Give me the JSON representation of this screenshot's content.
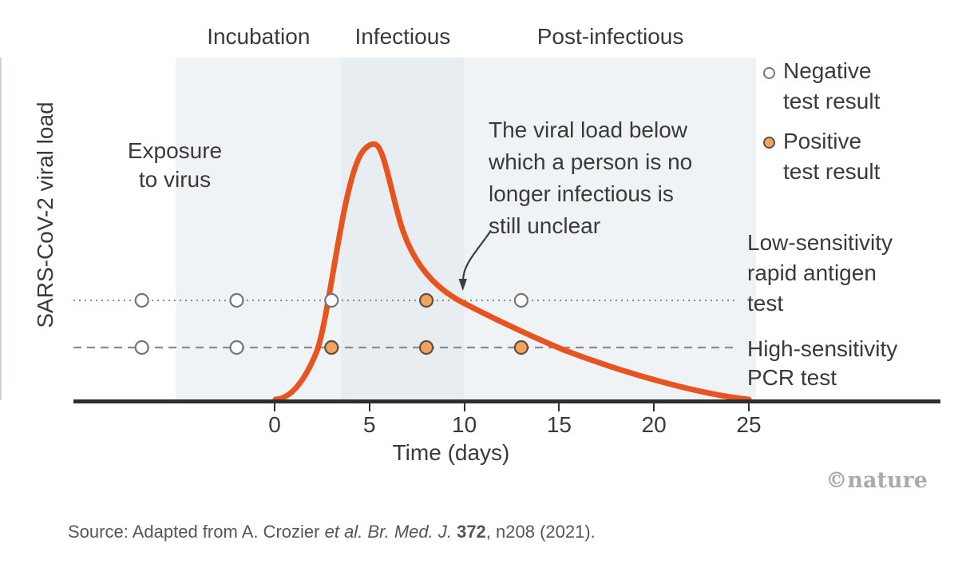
{
  "figure": {
    "y_axis_label": "SARS-CoV-2 viral load",
    "x_axis_label": "Time (days)",
    "exposure_label": "Exposure\nto virus",
    "annotation": "The viral load below\nwhich a person is no\nlonger infectious is\nstill unclear",
    "legend": {
      "negative": "Negative\ntest result",
      "positive": "Positive\ntest result"
    },
    "line_labels": {
      "antigen": "Low-sensitivity\nrapid antigen\ntest",
      "pcr": "High-sensitivity\nPCR test"
    },
    "watermark": "©nature",
    "source": {
      "prefix": "Source: Adapted from A. Crozier ",
      "italic": "et al. Br. Med. J. ",
      "bold": "372",
      "suffix": ", n208 (2021)."
    },
    "colors": {
      "curve": "#E7541F",
      "positive_fill": "#F2A45F",
      "positive_stroke": "#5C5142",
      "negative_stroke": "#757575",
      "band_light": "#F0F3F6",
      "band_dark": "#E8EDF1",
      "axis": "#2F2F2F",
      "muted_line": "#8C8C8C",
      "watermark": "#ABABAB",
      "source_text": "#565656",
      "exposure_line": "#C8D3DB"
    }
  },
  "chart_data": {
    "type": "line",
    "title": "",
    "xlabel": "Time (days)",
    "ylabel": "SARS-CoV-2 viral load",
    "x_ticks": [
      0,
      5,
      10,
      15,
      20,
      25
    ],
    "x_range": [
      -10.6,
      25.4
    ],
    "grid": false,
    "legend_position": "top-right",
    "phases": [
      {
        "label": "Incubation",
        "start_day": -5.2,
        "end_day": 3.5,
        "shade": "light"
      },
      {
        "label": "Infectious",
        "start_day": 3.5,
        "end_day": 10,
        "shade": "dark"
      },
      {
        "label": "Post-infectious",
        "start_day": 10,
        "end_day": 25.4,
        "shade": "light"
      }
    ],
    "exposure_day": -5.2,
    "viral_load_curve": {
      "units": "relative viral load (0-1)",
      "points": [
        [
          0,
          0
        ],
        [
          2.2,
          0.18
        ],
        [
          3.1,
          0.39
        ],
        [
          4,
          0.78
        ],
        [
          5.3,
          1.0
        ],
        [
          6.5,
          0.72
        ],
        [
          8,
          0.47
        ],
        [
          10,
          0.38
        ],
        [
          12,
          0.3
        ],
        [
          15.2,
          0.21
        ],
        [
          20,
          0.08
        ],
        [
          25,
          0
        ]
      ]
    },
    "tests": {
      "days": [
        -7,
        -2,
        3,
        8,
        13
      ],
      "rapid_antigen": [
        "negative",
        "negative",
        "negative",
        "positive",
        "negative"
      ],
      "pcr": [
        "negative",
        "negative",
        "positive",
        "positive",
        "positive"
      ],
      "antigen_detection_threshold_load": 0.39,
      "pcr_detection_threshold_load": 0.21
    }
  }
}
